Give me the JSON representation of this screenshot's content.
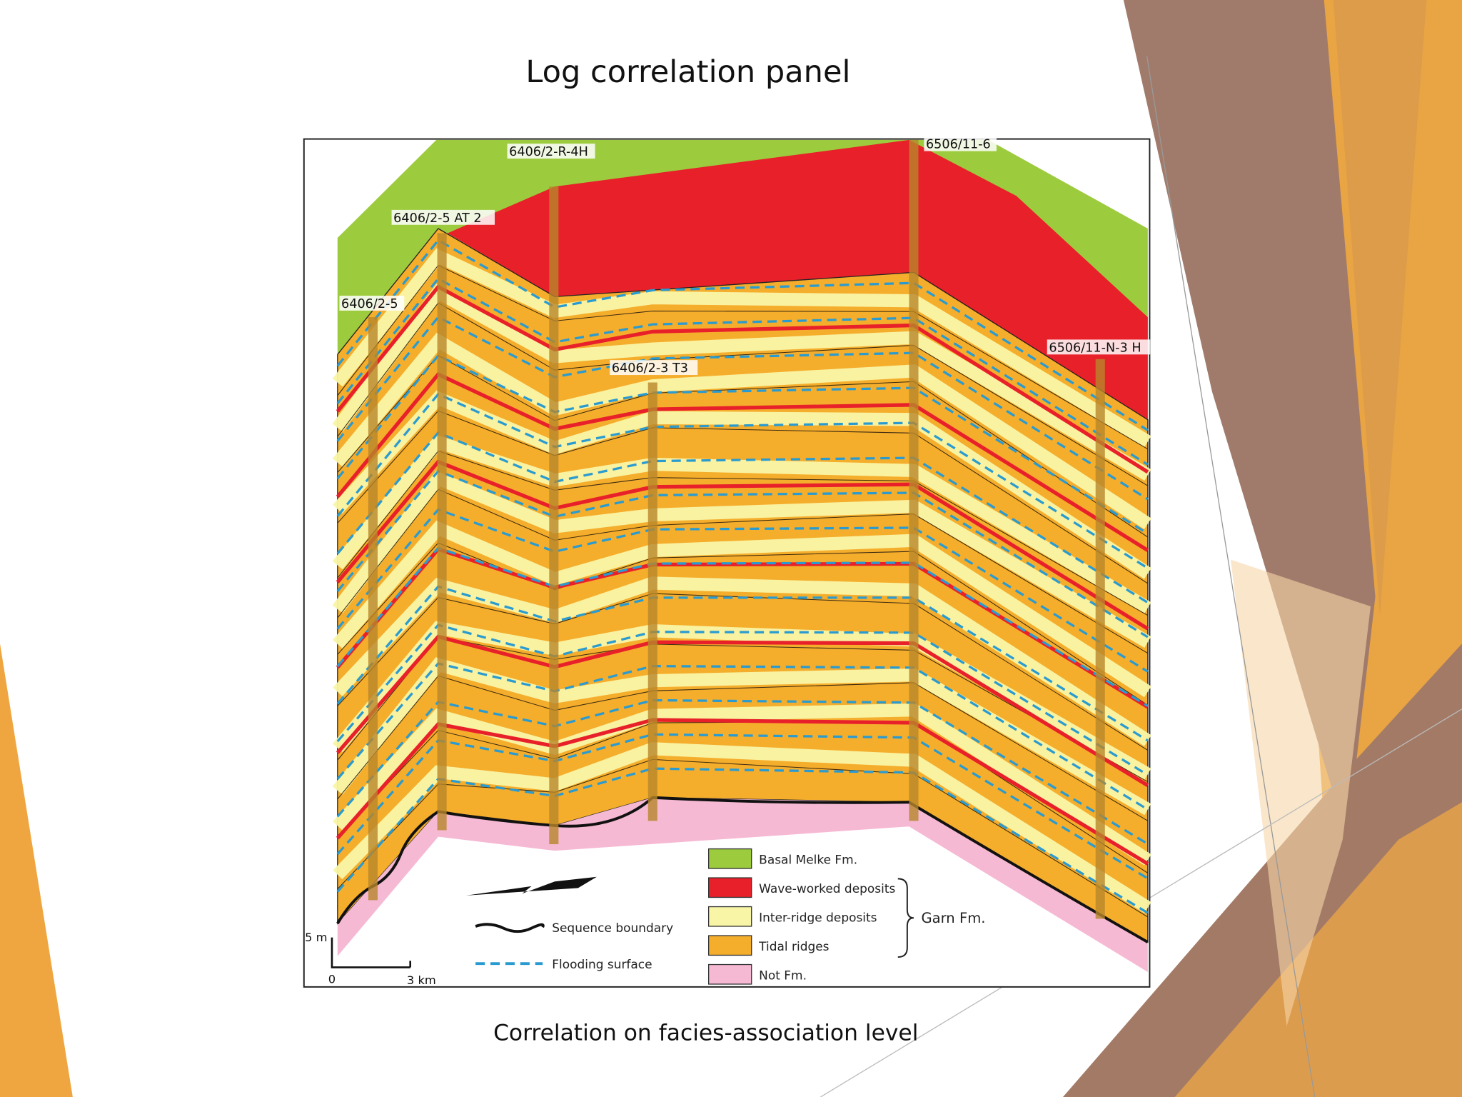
{
  "header": {
    "title": "Log correlation panel"
  },
  "figure": {
    "wells": [
      "6406/2-5",
      "6406/2-5 AT 2",
      "6406/2-R-4H",
      "6406/2-3 T3",
      "6506/11-6",
      "6506/11-N-3 H"
    ],
    "legend": {
      "facies": [
        "Basal Melke Fm.",
        "Wave-worked deposits",
        "Inter-ridge deposits",
        "Tidal ridges",
        "Not Fm."
      ],
      "group": "Garn Fm.",
      "lines": [
        "Sequence boundary",
        "Flooding surface"
      ]
    },
    "scale": {
      "vertical": "5 m",
      "origin": "0",
      "horizontal": "3 km"
    }
  },
  "caption": "Correlation on facies-association level"
}
